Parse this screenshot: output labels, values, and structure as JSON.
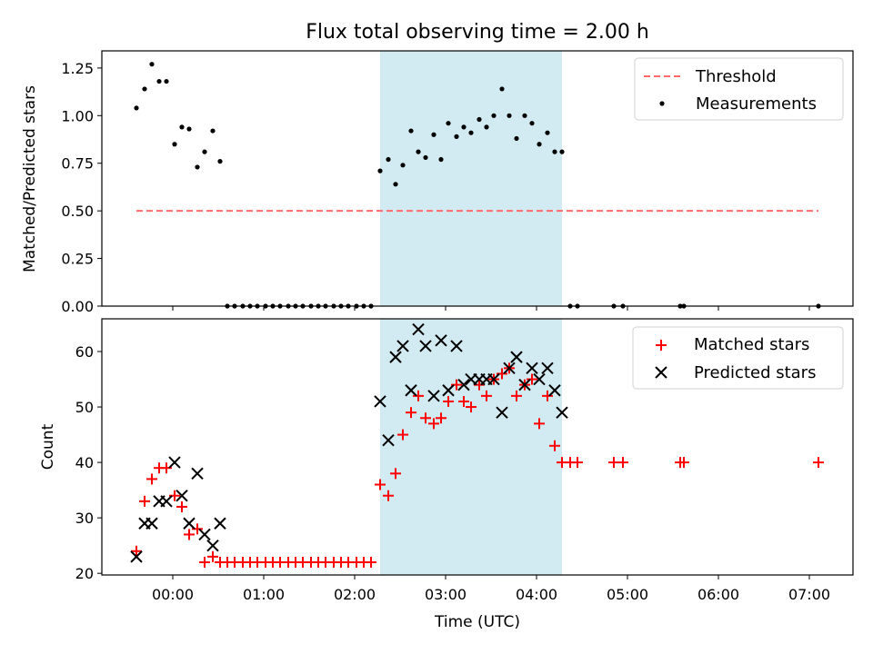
{
  "chart_data": {
    "type": "scatter",
    "title": "Flux total observing time = 2.00 h",
    "xlabel": "Time (UTC)",
    "xlim": [
      -0.78,
      7.48
    ],
    "x_ticks": [
      {
        "value": 0,
        "label": "00:00"
      },
      {
        "value": 1,
        "label": "01:00"
      },
      {
        "value": 2,
        "label": "02:00"
      },
      {
        "value": 3,
        "label": "03:00"
      },
      {
        "value": 4,
        "label": "04:00"
      },
      {
        "value": 5,
        "label": "05:00"
      },
      {
        "value": 6,
        "label": "06:00"
      },
      {
        "value": 7,
        "label": "07:00"
      }
    ],
    "shaded_interval": {
      "start": 2.28,
      "end": 4.28,
      "color": "#add8e6"
    },
    "top_panel": {
      "ylabel": "Matched/Predicted stars",
      "ylim": [
        0,
        1.34
      ],
      "y_ticks": [
        {
          "value": 0,
          "label": "0.00"
        },
        {
          "value": 0.25,
          "label": "0.25"
        },
        {
          "value": 0.5,
          "label": "0.50"
        },
        {
          "value": 0.75,
          "label": "0.75"
        },
        {
          "value": 1.0,
          "label": "1.00"
        },
        {
          "value": 1.25,
          "label": "1.25"
        }
      ],
      "legend_position": "upper right",
      "threshold": {
        "name": "Threshold",
        "value": 0.5,
        "x_range": [
          -0.4,
          7.1
        ],
        "color": "#ff6b6b"
      },
      "series": [
        {
          "name": "Measurements",
          "marker": "dot",
          "color": "#000000",
          "x": [
            -0.4,
            -0.31,
            -0.23,
            -0.15,
            -0.07,
            0.02,
            0.1,
            0.18,
            0.27,
            0.35,
            0.44,
            0.52,
            0.6,
            0.68,
            0.77,
            0.85,
            0.93,
            1.02,
            1.1,
            1.18,
            1.27,
            1.35,
            1.43,
            1.52,
            1.6,
            1.68,
            1.77,
            1.85,
            1.93,
            2.02,
            2.1,
            2.18,
            2.28,
            2.37,
            2.45,
            2.53,
            2.62,
            2.7,
            2.78,
            2.87,
            2.95,
            3.03,
            3.12,
            3.2,
            3.28,
            3.37,
            3.45,
            3.53,
            3.62,
            3.7,
            3.78,
            3.87,
            3.95,
            4.03,
            4.12,
            4.2,
            4.28,
            4.37,
            4.45,
            4.85,
            4.95,
            5.58,
            5.62,
            7.1
          ],
          "y": [
            1.04,
            1.14,
            1.27,
            1.18,
            1.18,
            0.85,
            0.94,
            0.93,
            0.73,
            0.81,
            0.92,
            0.76,
            0,
            0,
            0,
            0,
            0,
            0,
            0,
            0,
            0,
            0,
            0,
            0,
            0,
            0,
            0,
            0,
            0,
            0,
            0,
            0,
            0.71,
            0.77,
            0.64,
            0.74,
            0.92,
            0.81,
            0.78,
            0.9,
            0.77,
            0.96,
            0.89,
            0.94,
            0.91,
            0.98,
            0.94,
            1.0,
            1.14,
            1.0,
            0.88,
            1.0,
            0.96,
            0.85,
            0.91,
            0.81,
            0.81,
            0,
            0,
            0,
            0,
            0,
            0,
            0
          ]
        }
      ]
    },
    "bottom_panel": {
      "ylabel": "Count",
      "ylim": [
        19.7,
        65.9
      ],
      "y_ticks": [
        {
          "value": 20,
          "label": "20"
        },
        {
          "value": 30,
          "label": "30"
        },
        {
          "value": 40,
          "label": "40"
        },
        {
          "value": 50,
          "label": "50"
        },
        {
          "value": 60,
          "label": "60"
        }
      ],
      "legend_position": "upper right",
      "series": [
        {
          "name": "Matched stars",
          "marker": "plus",
          "color": "#ff0000",
          "x": [
            -0.4,
            -0.31,
            -0.23,
            -0.15,
            -0.07,
            0.02,
            0.1,
            0.18,
            0.27,
            0.35,
            0.44,
            0.52,
            0.6,
            0.68,
            0.77,
            0.85,
            0.93,
            1.02,
            1.1,
            1.18,
            1.27,
            1.35,
            1.43,
            1.52,
            1.6,
            1.68,
            1.77,
            1.85,
            1.93,
            2.02,
            2.1,
            2.18,
            2.28,
            2.37,
            2.45,
            2.53,
            2.62,
            2.7,
            2.78,
            2.87,
            2.95,
            3.03,
            3.12,
            3.2,
            3.28,
            3.37,
            3.45,
            3.53,
            3.62,
            3.7,
            3.78,
            3.87,
            3.95,
            4.03,
            4.12,
            4.2,
            4.28,
            4.37,
            4.45,
            4.85,
            4.95,
            5.58,
            5.62,
            7.1
          ],
          "y": [
            24,
            33,
            37,
            39,
            39,
            34,
            32,
            27,
            28,
            22,
            23,
            22,
            22,
            22,
            22,
            22,
            22,
            22,
            22,
            22,
            22,
            22,
            22,
            22,
            22,
            22,
            22,
            22,
            22,
            22,
            22,
            22,
            36,
            34,
            38,
            45,
            49,
            52,
            48,
            47,
            48,
            51,
            54,
            51,
            50,
            54,
            52,
            55,
            56,
            57,
            52,
            54,
            55,
            47,
            52,
            43,
            40,
            40,
            40,
            40,
            40,
            40,
            40,
            40
          ]
        },
        {
          "name": "Predicted stars",
          "marker": "x",
          "color": "#000000",
          "x": [
            -0.4,
            -0.31,
            -0.23,
            -0.15,
            -0.07,
            0.02,
            0.1,
            0.18,
            0.27,
            0.35,
            0.44,
            0.52,
            2.28,
            2.37,
            2.45,
            2.53,
            2.62,
            2.7,
            2.78,
            2.87,
            2.95,
            3.03,
            3.12,
            3.2,
            3.28,
            3.37,
            3.45,
            3.53,
            3.62,
            3.7,
            3.78,
            3.87,
            3.95,
            4.03,
            4.12,
            4.2,
            4.28
          ],
          "y": [
            23,
            29,
            29,
            33,
            33,
            40,
            34,
            29,
            38,
            27,
            25,
            29,
            51,
            44,
            59,
            61,
            53,
            64,
            61,
            52,
            62,
            53,
            61,
            54,
            55,
            55,
            55,
            55,
            49,
            57,
            59,
            54,
            57,
            55,
            57,
            53,
            49
          ]
        }
      ]
    }
  }
}
